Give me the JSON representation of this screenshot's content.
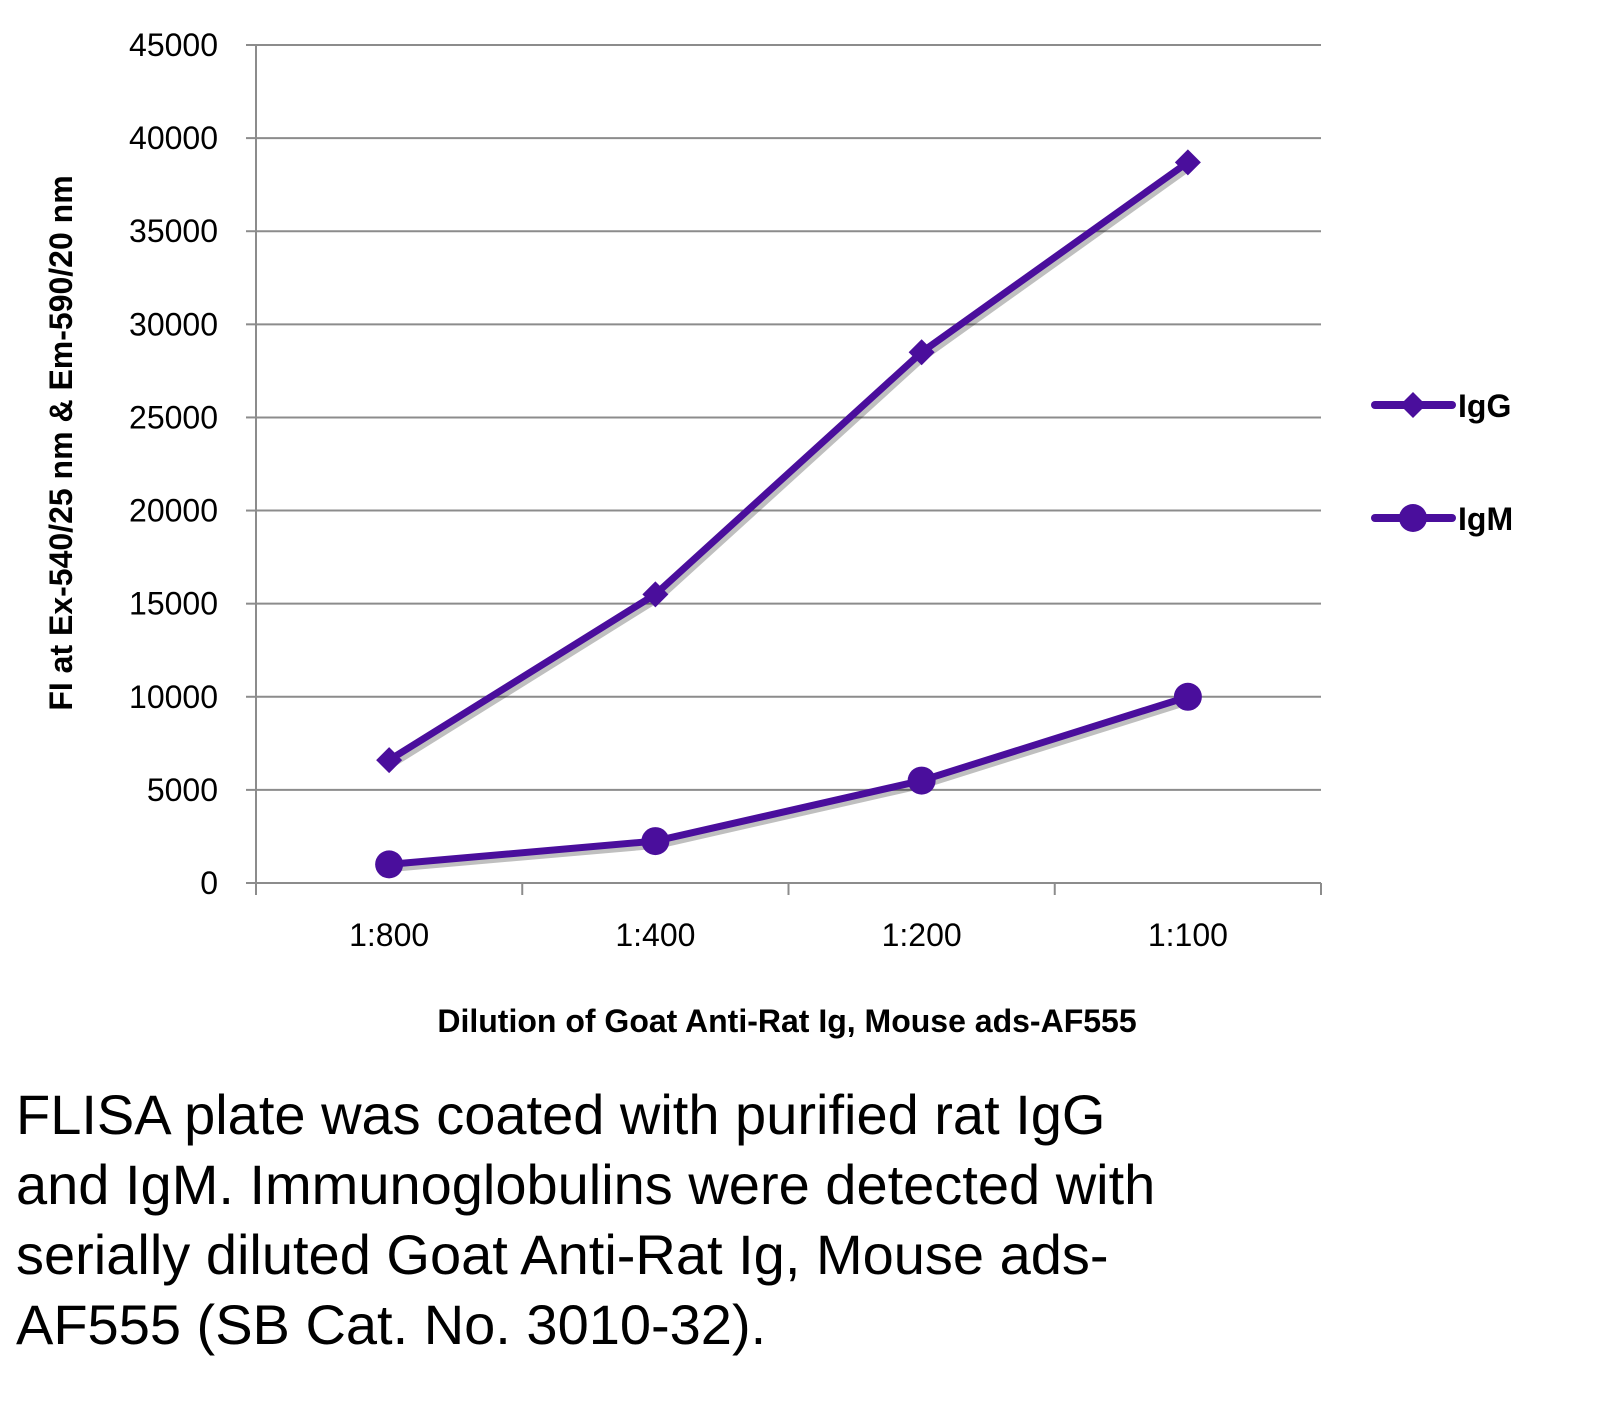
{
  "chart_data": {
    "type": "line",
    "categories": [
      "1:800",
      "1:400",
      "1:200",
      "1:100"
    ],
    "series": [
      {
        "name": "IgG",
        "marker": "diamond",
        "color": "#4A0E9C",
        "values": [
          6600,
          15500,
          28500,
          38700
        ]
      },
      {
        "name": "IgM",
        "marker": "circle",
        "color": "#4A0E9C",
        "values": [
          1000,
          2250,
          5500,
          10000
        ]
      }
    ],
    "xlabel": "Dilution of Goat Anti-Rat Ig, Mouse ads-AF555",
    "ylabel": "FI at Ex-540/25 nm & Em-590/20 nm",
    "ylim": [
      0,
      45000
    ],
    "yticks": [
      0,
      5000,
      10000,
      15000,
      20000,
      25000,
      30000,
      35000,
      40000,
      45000
    ],
    "grid": true,
    "legend_position": "right"
  },
  "caption": {
    "lines": [
      "FLISA plate was coated with purified rat IgG",
      "and IgM.  Immunoglobulins were detected with",
      "serially diluted Goat Anti-Rat Ig, Mouse ads-",
      "AF555 (SB Cat. No. 3010-32)."
    ]
  }
}
